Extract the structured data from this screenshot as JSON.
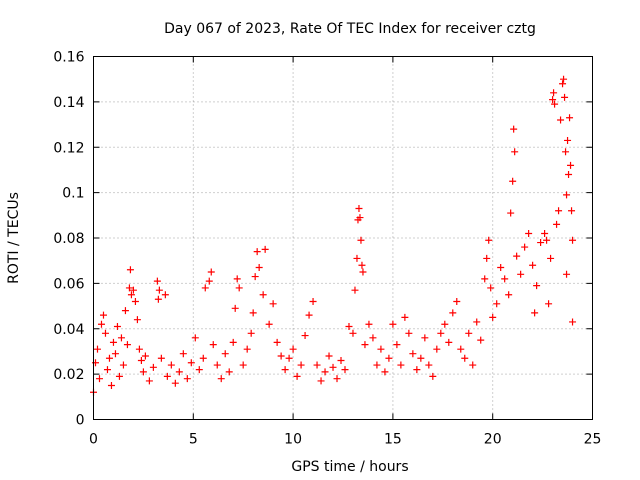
{
  "chart_data": {
    "type": "scatter",
    "title": "Day 067 of 2023, Rate Of TEC Index for receiver cztg",
    "xlabel": "GPS time / hours",
    "ylabel": "ROTI / TECUs",
    "xlim": [
      0,
      25
    ],
    "ylim": [
      0,
      0.16
    ],
    "xticks": [
      0,
      5,
      10,
      15,
      20,
      25
    ],
    "xtick_labels": [
      "0",
      "5",
      "10",
      "15",
      "20",
      "25"
    ],
    "yticks": [
      0,
      0.02,
      0.04,
      0.06,
      0.08,
      0.1,
      0.12,
      0.14,
      0.16
    ],
    "ytick_labels": [
      "0",
      "0.02",
      "0.04",
      "0.06",
      "0.08",
      "0.1",
      "0.12",
      "0.14",
      "0.16"
    ],
    "grid": true,
    "marker": "+",
    "series": [
      {
        "name": "ROTI",
        "color": "#ff0000",
        "points": [
          [
            0.0,
            0.012
          ],
          [
            0.1,
            0.025
          ],
          [
            0.2,
            0.031
          ],
          [
            0.3,
            0.018
          ],
          [
            0.4,
            0.042
          ],
          [
            0.5,
            0.046
          ],
          [
            0.6,
            0.038
          ],
          [
            0.7,
            0.022
          ],
          [
            0.8,
            0.027
          ],
          [
            0.9,
            0.015
          ],
          [
            1.0,
            0.034
          ],
          [
            1.1,
            0.029
          ],
          [
            1.2,
            0.041
          ],
          [
            1.3,
            0.019
          ],
          [
            1.4,
            0.036
          ],
          [
            1.5,
            0.024
          ],
          [
            1.6,
            0.048
          ],
          [
            1.7,
            0.033
          ],
          [
            1.8,
            0.058
          ],
          [
            1.85,
            0.066
          ],
          [
            1.9,
            0.055
          ],
          [
            2.0,
            0.057
          ],
          [
            2.1,
            0.052
          ],
          [
            2.2,
            0.044
          ],
          [
            2.3,
            0.031
          ],
          [
            2.4,
            0.026
          ],
          [
            2.5,
            0.021
          ],
          [
            2.6,
            0.028
          ],
          [
            2.8,
            0.017
          ],
          [
            3.0,
            0.023
          ],
          [
            3.2,
            0.061
          ],
          [
            3.25,
            0.053
          ],
          [
            3.3,
            0.057
          ],
          [
            3.4,
            0.027
          ],
          [
            3.6,
            0.055
          ],
          [
            3.7,
            0.019
          ],
          [
            3.9,
            0.024
          ],
          [
            4.1,
            0.016
          ],
          [
            4.3,
            0.021
          ],
          [
            4.5,
            0.029
          ],
          [
            4.7,
            0.018
          ],
          [
            4.9,
            0.025
          ],
          [
            5.1,
            0.036
          ],
          [
            5.3,
            0.022
          ],
          [
            5.5,
            0.027
          ],
          [
            5.6,
            0.058
          ],
          [
            5.8,
            0.061
          ],
          [
            5.9,
            0.065
          ],
          [
            6.0,
            0.033
          ],
          [
            6.2,
            0.024
          ],
          [
            6.4,
            0.018
          ],
          [
            6.6,
            0.029
          ],
          [
            6.8,
            0.021
          ],
          [
            7.0,
            0.034
          ],
          [
            7.1,
            0.049
          ],
          [
            7.2,
            0.062
          ],
          [
            7.3,
            0.058
          ],
          [
            7.5,
            0.024
          ],
          [
            7.7,
            0.031
          ],
          [
            7.9,
            0.038
          ],
          [
            8.0,
            0.047
          ],
          [
            8.1,
            0.063
          ],
          [
            8.2,
            0.074
          ],
          [
            8.3,
            0.067
          ],
          [
            8.5,
            0.055
          ],
          [
            8.6,
            0.075
          ],
          [
            8.8,
            0.042
          ],
          [
            9.0,
            0.051
          ],
          [
            9.2,
            0.034
          ],
          [
            9.4,
            0.028
          ],
          [
            9.6,
            0.022
          ],
          [
            9.8,
            0.027
          ],
          [
            10.0,
            0.031
          ],
          [
            10.2,
            0.019
          ],
          [
            10.4,
            0.024
          ],
          [
            10.6,
            0.037
          ],
          [
            10.8,
            0.046
          ],
          [
            11.0,
            0.052
          ],
          [
            11.2,
            0.024
          ],
          [
            11.4,
            0.017
          ],
          [
            11.6,
            0.021
          ],
          [
            11.8,
            0.028
          ],
          [
            12.0,
            0.023
          ],
          [
            12.2,
            0.018
          ],
          [
            12.4,
            0.026
          ],
          [
            12.6,
            0.022
          ],
          [
            12.8,
            0.041
          ],
          [
            13.0,
            0.038
          ],
          [
            13.1,
            0.057
          ],
          [
            13.2,
            0.071
          ],
          [
            13.25,
            0.088
          ],
          [
            13.3,
            0.093
          ],
          [
            13.35,
            0.089
          ],
          [
            13.4,
            0.079
          ],
          [
            13.45,
            0.068
          ],
          [
            13.5,
            0.065
          ],
          [
            13.6,
            0.033
          ],
          [
            13.8,
            0.042
          ],
          [
            14.0,
            0.036
          ],
          [
            14.2,
            0.024
          ],
          [
            14.4,
            0.031
          ],
          [
            14.6,
            0.021
          ],
          [
            14.8,
            0.027
          ],
          [
            15.0,
            0.042
          ],
          [
            15.2,
            0.033
          ],
          [
            15.4,
            0.024
          ],
          [
            15.6,
            0.045
          ],
          [
            15.8,
            0.038
          ],
          [
            16.0,
            0.029
          ],
          [
            16.2,
            0.022
          ],
          [
            16.4,
            0.027
          ],
          [
            16.6,
            0.036
          ],
          [
            16.8,
            0.024
          ],
          [
            17.0,
            0.019
          ],
          [
            17.2,
            0.031
          ],
          [
            17.4,
            0.038
          ],
          [
            17.6,
            0.042
          ],
          [
            17.8,
            0.034
          ],
          [
            18.0,
            0.047
          ],
          [
            18.2,
            0.052
          ],
          [
            18.4,
            0.031
          ],
          [
            18.6,
            0.027
          ],
          [
            18.8,
            0.038
          ],
          [
            19.0,
            0.024
          ],
          [
            19.2,
            0.043
          ],
          [
            19.4,
            0.035
          ],
          [
            19.6,
            0.062
          ],
          [
            19.7,
            0.071
          ],
          [
            19.8,
            0.079
          ],
          [
            19.9,
            0.058
          ],
          [
            20.0,
            0.045
          ],
          [
            20.2,
            0.051
          ],
          [
            20.4,
            0.067
          ],
          [
            20.6,
            0.062
          ],
          [
            20.8,
            0.055
          ],
          [
            20.9,
            0.091
          ],
          [
            21.0,
            0.105
          ],
          [
            21.05,
            0.128
          ],
          [
            21.1,
            0.118
          ],
          [
            21.2,
            0.072
          ],
          [
            21.4,
            0.064
          ],
          [
            21.6,
            0.076
          ],
          [
            21.8,
            0.082
          ],
          [
            22.0,
            0.068
          ],
          [
            22.2,
            0.059
          ],
          [
            22.4,
            0.078
          ],
          [
            22.6,
            0.082
          ],
          [
            22.7,
            0.079
          ],
          [
            22.9,
            0.071
          ],
          [
            23.0,
            0.141
          ],
          [
            23.05,
            0.144
          ],
          [
            23.1,
            0.139
          ],
          [
            23.2,
            0.086
          ],
          [
            23.3,
            0.092
          ],
          [
            23.4,
            0.132
          ],
          [
            23.5,
            0.148
          ],
          [
            23.55,
            0.15
          ],
          [
            23.6,
            0.142
          ],
          [
            23.65,
            0.118
          ],
          [
            23.7,
            0.099
          ],
          [
            23.75,
            0.123
          ],
          [
            23.8,
            0.108
          ],
          [
            23.85,
            0.133
          ],
          [
            23.9,
            0.112
          ],
          [
            23.95,
            0.092
          ],
          [
            24.0,
            0.079
          ],
          [
            24.0,
            0.043
          ],
          [
            23.7,
            0.064
          ],
          [
            22.8,
            0.051
          ],
          [
            22.1,
            0.047
          ]
        ]
      }
    ]
  }
}
